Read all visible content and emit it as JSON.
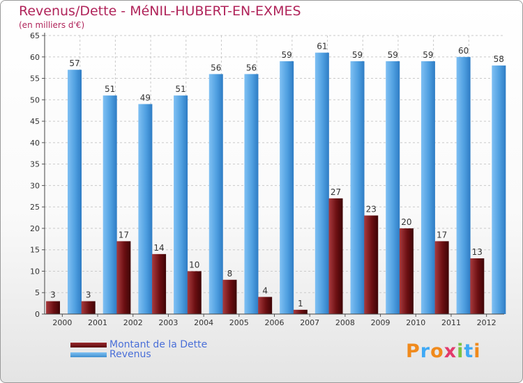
{
  "chart_data": {
    "type": "bar",
    "title": "Revenus/Dette - MéNIL-HUBERT-EN-EXMES",
    "subtitle": "(en milliers d'€)",
    "categories": [
      "2000",
      "2001",
      "2002",
      "2003",
      "2004",
      "2005",
      "2006",
      "2007",
      "2008",
      "2009",
      "2010",
      "2011",
      "2012"
    ],
    "series": [
      {
        "name": "Montant de la Dette",
        "color": "#6b0f12",
        "values": [
          3,
          3,
          17,
          14,
          10,
          8,
          4,
          1,
          27,
          23,
          20,
          17,
          13
        ]
      },
      {
        "name": "Revenus",
        "color": "#4f9fe0",
        "values": [
          57,
          51,
          49,
          51,
          56,
          56,
          59,
          61,
          59,
          59,
          59,
          60,
          58
        ]
      }
    ],
    "ylim": [
      0,
      65
    ],
    "yticks": [
      0,
      5,
      10,
      15,
      20,
      25,
      30,
      35,
      40,
      45,
      50,
      55,
      60,
      65
    ],
    "grid": true,
    "legend_position": "bottom-left"
  },
  "branding": {
    "logo_letters": [
      "P",
      "r",
      "o",
      "x",
      "i",
      "t",
      "i"
    ],
    "logo_colors": [
      "#f08a1c",
      "#3fa9f5",
      "#f08a1c",
      "#e23a6b",
      "#7cc242",
      "#3fa9f5",
      "#f08a1c"
    ]
  }
}
